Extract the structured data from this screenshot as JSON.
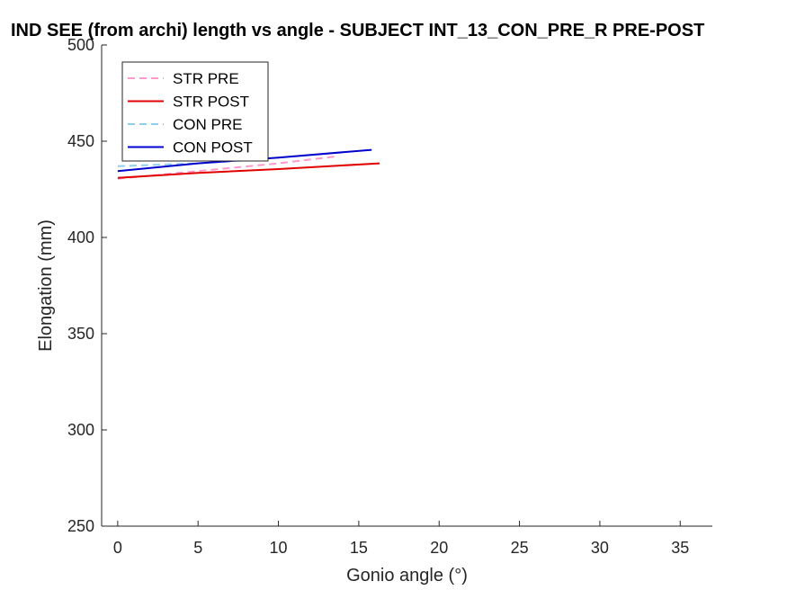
{
  "chart_data": {
    "type": "line",
    "title": "IND SEE (from archi) length vs angle - SUBJECT INT_13_CON_PRE_R PRE-POST",
    "xlabel": "Gonio angle (°)",
    "ylabel": "Elongation (mm)",
    "xlim": [
      -1,
      37
    ],
    "ylim": [
      250,
      500
    ],
    "xticks": [
      0,
      5,
      10,
      15,
      20,
      25,
      30,
      35
    ],
    "yticks": [
      250,
      300,
      350,
      400,
      450,
      500
    ],
    "grid": false,
    "legend_placement": "top-left",
    "series": [
      {
        "name": "STR PRE",
        "color": "#ff99cc",
        "dash": "dashed",
        "x": [
          0,
          5,
          10,
          13.5
        ],
        "y": [
          430.5,
          434.5,
          438.5,
          442
        ]
      },
      {
        "name": "STR POST",
        "color": "#e00000",
        "dash": "solid",
        "x": [
          0,
          5,
          10,
          16.3
        ],
        "y": [
          431,
          433.5,
          435.5,
          438.5
        ]
      },
      {
        "name": "CON PRE",
        "color": "#8ecfee",
        "dash": "dashed",
        "x": [
          0,
          5,
          8
        ],
        "y": [
          437,
          438.5,
          440
        ]
      },
      {
        "name": "CON POST",
        "color": "#0000cc",
        "dash": "solid",
        "x": [
          0,
          5,
          10,
          15.8
        ],
        "y": [
          434.5,
          438.5,
          441.5,
          445.5
        ]
      }
    ]
  }
}
